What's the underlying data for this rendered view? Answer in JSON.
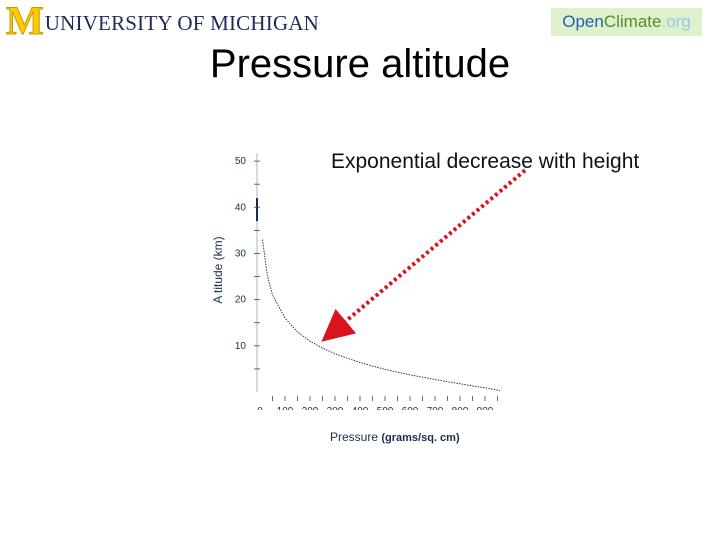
{
  "header": {
    "left_logo_mark": "M",
    "left_logo_text": "UNIVERSITY OF MICHIGAN",
    "right_logo_open": "Open",
    "right_logo_climate": "Climate",
    "right_logo_org": ".org"
  },
  "slide": {
    "title": "Pressure altitude"
  },
  "chart_data": {
    "type": "line",
    "xlabel": "Pressure",
    "xlabel_unit": "(grams/sq. cm)",
    "ylabel": "A titude (km)",
    "xlim": [
      0,
      1000
    ],
    "ylim": [
      0,
      55
    ],
    "x_ticks": [
      "0",
      "100",
      "200",
      "300",
      "400",
      "500",
      "600",
      "700",
      "800",
      "900"
    ],
    "y_ticks": [
      "10",
      "20",
      "30",
      "40",
      "50"
    ],
    "series": [
      {
        "x": [
          10,
          30,
          50,
          100,
          150,
          200,
          250,
          300,
          350,
          400,
          450,
          500,
          550,
          600,
          650,
          700,
          750,
          800,
          850,
          900,
          960
        ],
        "y": [
          33,
          25,
          21,
          16,
          13,
          11,
          9.5,
          8.3,
          7.3,
          6.4,
          5.6,
          4.9,
          4.3,
          3.7,
          3.2,
          2.7,
          2.2,
          1.8,
          1.3,
          0.9,
          0.3
        ]
      }
    ],
    "annotations": [
      {
        "text": "Exponential decrease with height",
        "arrow_from": [
          1060,
          48
        ],
        "arrow_to": [
          270,
          12
        ]
      }
    ],
    "grid": false,
    "legend": "none"
  },
  "colors": {
    "arrow": "#d9141c",
    "axis_text": "#1a2d4f",
    "curve": "#222222"
  }
}
